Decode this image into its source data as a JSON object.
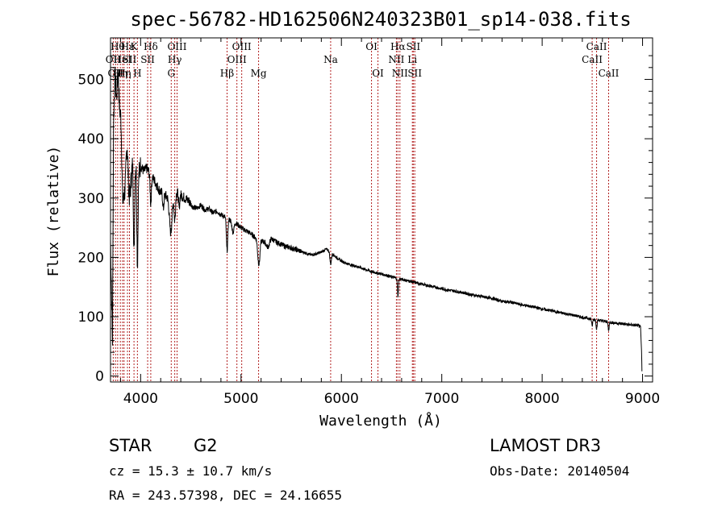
{
  "chart_data": {
    "type": "line",
    "title": "spec-56782-HD162506N240323B01_sp14-038.fits",
    "xlabel": "Wavelength (Å)",
    "ylabel": "Flux (relative)",
    "xlim": [
      3700,
      9100
    ],
    "ylim": [
      -10,
      570
    ],
    "xticks": [
      4000,
      5000,
      6000,
      7000,
      8000,
      9000
    ],
    "yticks": [
      0,
      100,
      200,
      300,
      400,
      500
    ],
    "colors": {
      "spectrum": "#000000",
      "lines": "#b22222",
      "axes": "#000000"
    },
    "continuum": [
      [
        3700,
        230
      ],
      [
        3720,
        60
      ],
      [
        3730,
        430
      ],
      [
        3745,
        505
      ],
      [
        3760,
        470
      ],
      [
        3775,
        520
      ],
      [
        3790,
        480
      ],
      [
        3805,
        500
      ],
      [
        3820,
        420
      ],
      [
        3835,
        440
      ],
      [
        3850,
        400
      ],
      [
        3865,
        415
      ],
      [
        3880,
        370
      ],
      [
        3895,
        360
      ],
      [
        3910,
        355
      ],
      [
        3925,
        365
      ],
      [
        3940,
        350
      ],
      [
        3955,
        360
      ],
      [
        3980,
        340
      ],
      [
        4000,
        355
      ],
      [
        4030,
        345
      ],
      [
        4060,
        350
      ],
      [
        4080,
        345
      ],
      [
        4100,
        330
      ],
      [
        4120,
        335
      ],
      [
        4150,
        325
      ],
      [
        4180,
        315
      ],
      [
        4200,
        310
      ],
      [
        4240,
        305
      ],
      [
        4280,
        300
      ],
      [
        4320,
        305
      ],
      [
        4360,
        310
      ],
      [
        4400,
        305
      ],
      [
        4440,
        300
      ],
      [
        4480,
        295
      ],
      [
        4520,
        285
      ],
      [
        4560,
        283
      ],
      [
        4600,
        288
      ],
      [
        4640,
        280
      ],
      [
        4680,
        282
      ],
      [
        4720,
        275
      ],
      [
        4760,
        278
      ],
      [
        4800,
        272
      ],
      [
        4850,
        268
      ],
      [
        4900,
        262
      ],
      [
        4950,
        258
      ],
      [
        5000,
        250
      ],
      [
        5050,
        245
      ],
      [
        5100,
        240
      ],
      [
        5150,
        232
      ],
      [
        5200,
        228
      ],
      [
        5250,
        225
      ],
      [
        5300,
        232
      ],
      [
        5350,
        226
      ],
      [
        5400,
        222
      ],
      [
        5450,
        218
      ],
      [
        5500,
        216
      ],
      [
        5550,
        213
      ],
      [
        5600,
        210
      ],
      [
        5650,
        207
      ],
      [
        5700,
        204
      ],
      [
        5750,
        206
      ],
      [
        5800,
        209
      ],
      [
        5850,
        214
      ],
      [
        5900,
        208
      ],
      [
        5950,
        200
      ],
      [
        6000,
        194
      ],
      [
        6050,
        190
      ],
      [
        6100,
        187
      ],
      [
        6150,
        185
      ],
      [
        6200,
        182
      ],
      [
        6250,
        179
      ],
      [
        6300,
        176
      ],
      [
        6350,
        174
      ],
      [
        6400,
        172
      ],
      [
        6450,
        170
      ],
      [
        6500,
        167
      ],
      [
        6550,
        165
      ],
      [
        6600,
        163
      ],
      [
        6650,
        161
      ],
      [
        6700,
        159
      ],
      [
        6750,
        157
      ],
      [
        6800,
        155
      ],
      [
        6850,
        153
      ],
      [
        6900,
        151
      ],
      [
        6950,
        149
      ],
      [
        7000,
        147
      ],
      [
        7100,
        144
      ],
      [
        7200,
        141
      ],
      [
        7300,
        137
      ],
      [
        7400,
        134
      ],
      [
        7500,
        131
      ],
      [
        7600,
        126
      ],
      [
        7700,
        124
      ],
      [
        7800,
        120
      ],
      [
        7900,
        117
      ],
      [
        8000,
        113
      ],
      [
        8100,
        110
      ],
      [
        8200,
        106
      ],
      [
        8300,
        103
      ],
      [
        8400,
        99
      ],
      [
        8500,
        96
      ],
      [
        8600,
        93
      ],
      [
        8700,
        90
      ],
      [
        8800,
        88
      ],
      [
        8900,
        86
      ],
      [
        8960,
        85
      ],
      [
        8980,
        82
      ],
      [
        8990,
        40
      ],
      [
        8995,
        0
      ]
    ],
    "absorption": [
      [
        3820,
        30,
        80
      ],
      [
        3835,
        20,
        70
      ],
      [
        3889,
        18,
        60
      ],
      [
        3934,
        8,
        150
      ],
      [
        3968,
        8,
        160
      ],
      [
        4101,
        8,
        40
      ],
      [
        4226,
        8,
        25
      ],
      [
        4300,
        18,
        60
      ],
      [
        4340,
        10,
        45
      ],
      [
        4383,
        8,
        25
      ],
      [
        4861,
        10,
        55
      ],
      [
        4920,
        14,
        18
      ],
      [
        5172,
        12,
        30
      ],
      [
        5184,
        10,
        25
      ],
      [
        5270,
        20,
        10
      ],
      [
        5893,
        10,
        20
      ],
      [
        6563,
        7,
        30
      ],
      [
        8498,
        7,
        12
      ],
      [
        8542,
        7,
        15
      ],
      [
        8662,
        7,
        14
      ]
    ],
    "spectral_lines": [
      {
        "wavelength": 3727,
        "label": "OII",
        "row": 2
      },
      {
        "wavelength": 3750,
        "label": "OII",
        "row": 3
      },
      {
        "wavelength": 3771,
        "label": "Hθ",
        "row": 1
      },
      {
        "wavelength": 3798,
        "label": "Hη",
        "row": 3
      },
      {
        "wavelength": 3820,
        "label": "HeI",
        "row": 2
      },
      {
        "wavelength": 3835,
        "label": "Hη",
        "row": 3
      },
      {
        "wavelength": 3869,
        "label": "Hε",
        "row": 1
      },
      {
        "wavelength": 3889,
        "label": "SII",
        "row": 2
      },
      {
        "wavelength": 3934,
        "label": "K",
        "row": 1
      },
      {
        "wavelength": 3968,
        "label": "H",
        "row": 3
      },
      {
        "wavelength": 4070,
        "label": "SII",
        "row": 2
      },
      {
        "wavelength": 4101,
        "label": "Hδ",
        "row": 1
      },
      {
        "wavelength": 4305,
        "label": "G",
        "row": 3
      },
      {
        "wavelength": 4340,
        "label": "Hγ",
        "row": 2
      },
      {
        "wavelength": 4363,
        "label": "OIII",
        "row": 1
      },
      {
        "wavelength": 4861,
        "label": "Hβ",
        "row": 3
      },
      {
        "wavelength": 4959,
        "label": "OIII",
        "row": 2
      },
      {
        "wavelength": 5007,
        "label": "OIII",
        "row": 1
      },
      {
        "wavelength": 5175,
        "label": "Mg",
        "row": 3
      },
      {
        "wavelength": 5893,
        "label": "Na",
        "row": 2
      },
      {
        "wavelength": 6300,
        "label": "OI",
        "row": 1
      },
      {
        "wavelength": 6364,
        "label": "OI",
        "row": 3
      },
      {
        "wavelength": 6548,
        "label": "NII",
        "row": 2
      },
      {
        "wavelength": 6563,
        "label": "Hα",
        "row": 1
      },
      {
        "wavelength": 6583,
        "label": "NII",
        "row": 3
      },
      {
        "wavelength": 6707,
        "label": "Li",
        "row": 2
      },
      {
        "wavelength": 6716,
        "label": "SII",
        "row": 1
      },
      {
        "wavelength": 6731,
        "label": "SII",
        "row": 3
      },
      {
        "wavelength": 8498,
        "label": "CaII",
        "row": 2
      },
      {
        "wavelength": 8542,
        "label": "CaII",
        "row": 1
      },
      {
        "wavelength": 8662,
        "label": "CaII",
        "row": 3
      }
    ]
  },
  "info": {
    "object_class": "STAR",
    "subclass": "G2",
    "survey": "LAMOST DR3",
    "redshift": "cz = 15.3 ± 10.7 km/s",
    "obs_date": "Obs-Date: 20140504",
    "coords": "RA = 243.57398, DEC =  24.16655"
  }
}
